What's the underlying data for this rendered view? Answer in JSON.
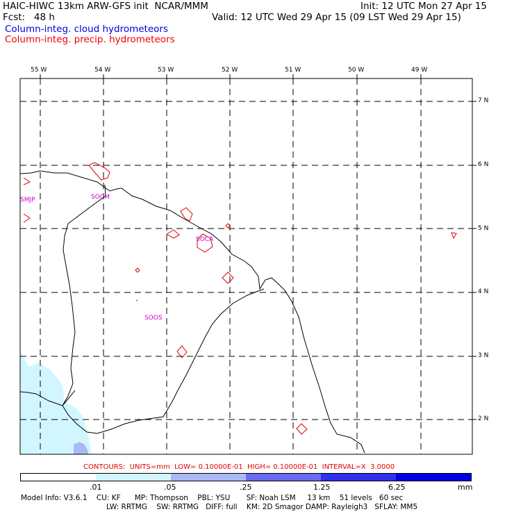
{
  "header": {
    "title": "HAIC-HIWC 13km ARW-GFS init  NCAR/MMM",
    "fcst": "Fcst:   48 h",
    "init": "Init: 12 UTC Mon 27 Apr 15",
    "valid": "Valid: 12 UTC Wed 29 Apr 15 (09 LST Wed 29 Apr 15)"
  },
  "legend_lines": {
    "cloud": "Column-integ. cloud hydrometeors",
    "precip": "Column-integ. precip. hydrometeors"
  },
  "axes": {
    "longitude_labels": [
      "55 W",
      "54 W",
      "53 W",
      "52 W",
      "51 W",
      "50 W",
      "49 W"
    ],
    "latitude_labels": [
      "7 N",
      "6 N",
      "5 N",
      "4 N",
      "3 N",
      "2 N"
    ]
  },
  "stations": [
    "SMJP",
    "SOCM",
    "SOCA",
    "SOOS"
  ],
  "contour_info": "CONTOURS:  UNITS=mm  LOW= 0.10000E-01  HIGH= 0.10000E-01  INTERVAL=X  3.0000",
  "colorbar": {
    "tick_labels": [
      ".01",
      ".05",
      ".25",
      "1.25",
      "6.25"
    ],
    "units": "mm",
    "colors": [
      "#ffffff",
      "#d2f6ff",
      "#aab8f5",
      "#6b6bf2",
      "#3030ee",
      "#0000e6"
    ]
  },
  "model_info": {
    "line1": "Model Info: V3.6.1    CU: KF      MP: Thompson    PBL: YSU       SF: Noah LSM     13 km    51 levels   60 sec",
    "line2": "LW: RRTMG    SW: RRTMG   DIFF: full    KM: 2D Smagor DAMP: Rayleigh3   SFLAY: MM5"
  },
  "colors": {
    "cloud_text": "#0000dd",
    "precip_text": "#ee0000",
    "station_text": "#d000d0",
    "precip_contour": "#dd0000",
    "light_cloud_fill": "#d2f6ff",
    "medium_cloud_fill": "#aab8f5"
  }
}
